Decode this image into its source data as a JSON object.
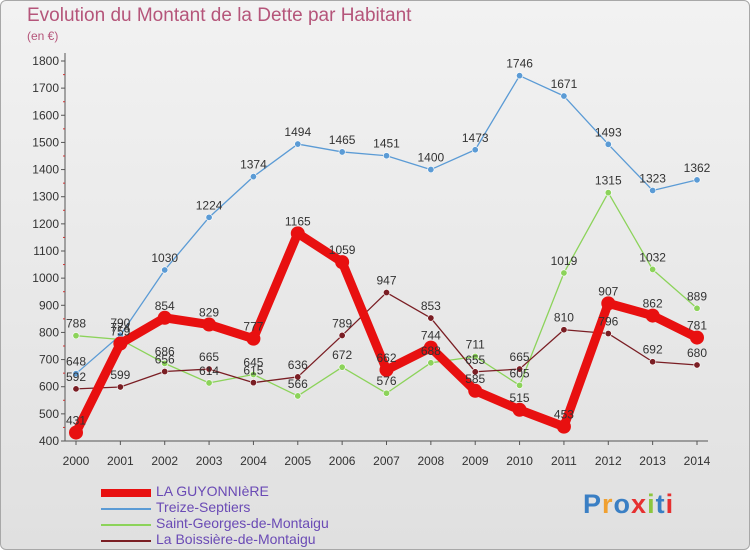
{
  "header": {
    "title": "Evolution du Montant de la Dette par Habitant",
    "unit": "(en €)"
  },
  "logo": {
    "letters": [
      "P",
      "r",
      "o",
      "x",
      "i",
      "t",
      "i"
    ],
    "colors": [
      "#3a7fc4",
      "#f0a030",
      "#3a7fc4",
      "#e63030",
      "#8cc63e",
      "#3a7fc4",
      "#e63030"
    ]
  },
  "chart_data": {
    "type": "line",
    "title": "Evolution du Montant de la Dette par Habitant",
    "ylabel": "(en €)",
    "xlabel": "",
    "x": [
      "2000",
      "2001",
      "2002",
      "2003",
      "2004",
      "2005",
      "2006",
      "2007",
      "2008",
      "2009",
      "2010",
      "2011",
      "2012",
      "2013",
      "2014"
    ],
    "ylim": [
      400,
      1800
    ],
    "yticks": [
      400,
      500,
      600,
      700,
      800,
      900,
      1000,
      1100,
      1200,
      1300,
      1400,
      1500,
      1600,
      1700,
      1800
    ],
    "grid": false,
    "legend": "bottom",
    "series": [
      {
        "name": "LA GUYONNIèRE",
        "color": "#e81010",
        "values": [
          431,
          759,
          854,
          829,
          777,
          1165,
          1059,
          662,
          744,
          585,
          515,
          453,
          907,
          862,
          781
        ]
      },
      {
        "name": "Treize-Septiers",
        "color": "#5b9bd5",
        "values": [
          648,
          790,
          1030,
          1224,
          1374,
          1494,
          1465,
          1451,
          1400,
          1473,
          1746,
          1671,
          1493,
          1323,
          1362
        ]
      },
      {
        "name": "Saint-Georges-de-Montaigu",
        "color": "#8cd35a",
        "values": [
          788,
          774,
          686,
          614,
          645,
          566,
          672,
          576,
          688,
          711,
          605,
          1019,
          1315,
          1032,
          889
        ]
      },
      {
        "name": "La Boissière-de-Montaigu",
        "color": "#7a1e24",
        "values": [
          592,
          599,
          656,
          665,
          615,
          636,
          789,
          947,
          853,
          655,
          665,
          810,
          796,
          692,
          680
        ]
      }
    ]
  }
}
